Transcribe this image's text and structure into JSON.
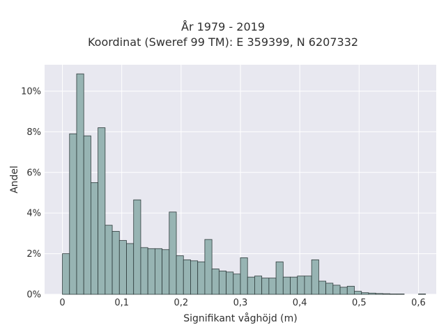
{
  "chart_data": {
    "type": "bar",
    "title": "År 1979 - 2019",
    "subtitle": "Koordinat (Sweref 99 TM): E 359399, N 6207332",
    "xlabel": "Signifikant våghöjd (m)",
    "ylabel": "Andel",
    "xlim": [
      -0.03,
      0.63
    ],
    "ylim": [
      0,
      11.3
    ],
    "x_ticks": [
      0,
      0.1,
      0.2,
      0.3,
      0.4,
      0.5,
      0.6
    ],
    "x_tick_labels": [
      "0",
      "0,1",
      "0,2",
      "0,3",
      "0,4",
      "0,5",
      "0,6"
    ],
    "y_ticks": [
      0,
      2,
      4,
      6,
      8,
      10
    ],
    "y_tick_labels": [
      "0%",
      "2%",
      "4%",
      "6%",
      "8%",
      "10%"
    ],
    "grid": true,
    "bin_width": 0.012,
    "bin_start": 0,
    "values": [
      2.0,
      7.9,
      10.85,
      7.8,
      5.5,
      8.2,
      3.4,
      3.1,
      2.65,
      2.5,
      4.65,
      2.3,
      2.25,
      2.25,
      2.2,
      4.05,
      1.9,
      1.7,
      1.65,
      1.6,
      2.7,
      1.25,
      1.15,
      1.1,
      1.0,
      1.8,
      0.85,
      0.9,
      0.8,
      0.8,
      1.6,
      0.85,
      0.85,
      0.9,
      0.9,
      1.7,
      0.65,
      0.55,
      0.45,
      0.35,
      0.4,
      0.15,
      0.08,
      0.06,
      0.04,
      0.03,
      0.02,
      0.02,
      0.0,
      0.0,
      0.02
    ],
    "colors": {
      "bar_fill": "#97b4b3",
      "bar_edge": "#2e3b3b",
      "plot_bg": "#e8e8f0",
      "grid": "#ffffff"
    }
  }
}
